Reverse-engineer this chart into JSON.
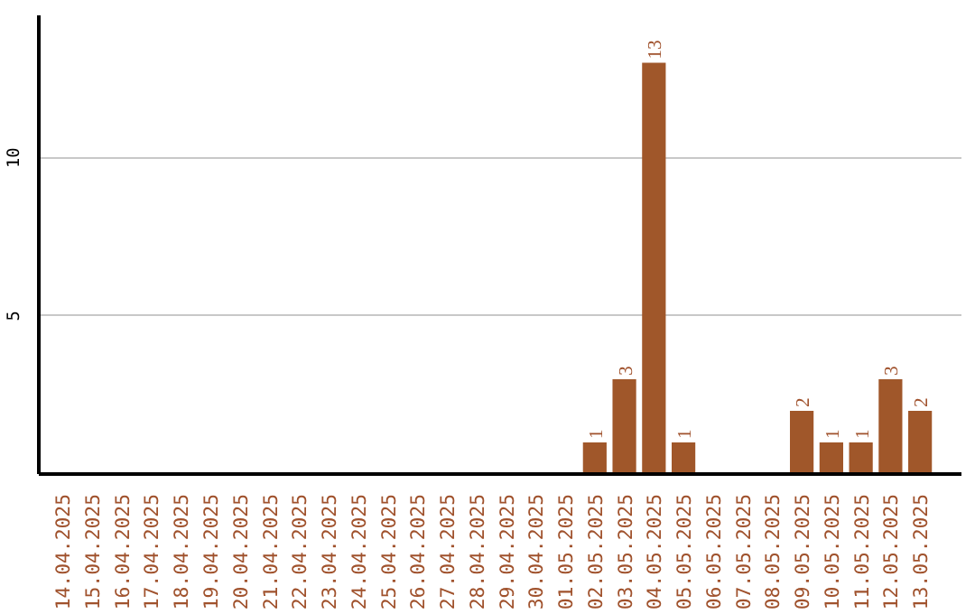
{
  "chart_data": {
    "type": "bar",
    "categories": [
      "14.04.2025",
      "15.04.2025",
      "16.04.2025",
      "17.04.2025",
      "18.04.2025",
      "19.04.2025",
      "20.04.2025",
      "21.04.2025",
      "22.04.2025",
      "23.04.2025",
      "24.04.2025",
      "25.04.2025",
      "26.04.2025",
      "27.04.2025",
      "28.04.2025",
      "29.04.2025",
      "30.04.2025",
      "01.05.2025",
      "02.05.2025",
      "03.05.2025",
      "04.05.2025",
      "05.05.2025",
      "06.05.2025",
      "07.05.2025",
      "08.05.2025",
      "09.05.2025",
      "10.05.2025",
      "11.05.2025",
      "12.05.2025",
      "13.05.2025"
    ],
    "values": [
      0,
      0,
      0,
      0,
      0,
      0,
      0,
      0,
      0,
      0,
      0,
      0,
      0,
      0,
      0,
      0,
      0,
      0,
      1,
      3,
      13,
      1,
      0,
      0,
      0,
      2,
      1,
      1,
      3,
      2
    ],
    "value_labels": [
      null,
      null,
      null,
      null,
      null,
      null,
      null,
      null,
      null,
      null,
      null,
      null,
      null,
      null,
      null,
      null,
      null,
      null,
      "1",
      "3",
      "13",
      "1",
      null,
      null,
      null,
      "2",
      "1",
      "1",
      "3",
      "2"
    ],
    "color": "#a0572a",
    "ylim": [
      0,
      14.5
    ],
    "yticks": [
      5,
      10
    ],
    "grid": "y"
  }
}
